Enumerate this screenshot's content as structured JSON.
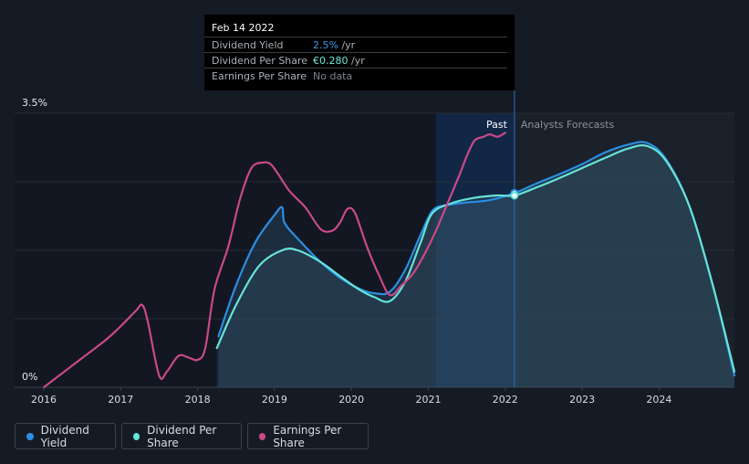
{
  "tooltip": {
    "date": "Feb 14 2022",
    "rows": [
      {
        "name": "Dividend Yield",
        "value": "2.5%",
        "unit": " /yr",
        "color": "#3b9ae1"
      },
      {
        "name": "Dividend Per Share",
        "value": "€0.280",
        "unit": " /yr",
        "color": "#6fe8d9"
      },
      {
        "name": "Earnings Per Share",
        "value": "No data",
        "unit": "",
        "color": "#7d848c"
      }
    ]
  },
  "legend": [
    {
      "label": "Dividend Yield",
      "color": "#2b8fe3"
    },
    {
      "label": "Dividend Per Share",
      "color": "#66e4d8"
    },
    {
      "label": "Earnings Per Share",
      "color": "#c9498a"
    }
  ],
  "regions": {
    "past": "Past",
    "forecast": "Analysts Forecasts"
  },
  "chart_data": {
    "type": "line",
    "x_ticks": [
      "2016",
      "2017",
      "2018",
      "2019",
      "2020",
      "2021",
      "2022",
      "2023",
      "2024"
    ],
    "y_tick_labels": [
      "3.5%",
      "0%"
    ],
    "ylim": [
      0,
      3.5
    ],
    "xlim": [
      2016,
      2024.98
    ],
    "divider_x": 2022.12,
    "highlight_band": [
      2021.1,
      2022.12
    ],
    "marker_x": 2022.12,
    "grid": true,
    "colors": {
      "yield": "#2b8fe3",
      "dps": "#66e4d8",
      "eps": "#c9498a"
    },
    "series": [
      {
        "name": "Dividend Yield",
        "key": "yield",
        "points": [
          [
            2018.27,
            0.65
          ],
          [
            2018.5,
            1.3
          ],
          [
            2018.75,
            1.85
          ],
          [
            2019.0,
            2.2
          ],
          [
            2019.1,
            2.3
          ],
          [
            2019.13,
            2.1
          ],
          [
            2019.3,
            1.9
          ],
          [
            2019.6,
            1.6
          ],
          [
            2019.85,
            1.4
          ],
          [
            2020.1,
            1.26
          ],
          [
            2020.3,
            1.2
          ],
          [
            2020.5,
            1.22
          ],
          [
            2020.7,
            1.5
          ],
          [
            2020.9,
            1.95
          ],
          [
            2021.05,
            2.25
          ],
          [
            2021.2,
            2.32
          ],
          [
            2021.5,
            2.36
          ],
          [
            2021.8,
            2.39
          ],
          [
            2022.12,
            2.48
          ],
          [
            2022.4,
            2.6
          ],
          [
            2022.7,
            2.72
          ],
          [
            2023.0,
            2.85
          ],
          [
            2023.3,
            3.0
          ],
          [
            2023.6,
            3.1
          ],
          [
            2023.85,
            3.12
          ],
          [
            2024.1,
            2.9
          ],
          [
            2024.4,
            2.3
          ],
          [
            2024.7,
            1.3
          ],
          [
            2024.98,
            0.15
          ]
        ]
      },
      {
        "name": "Dividend Per Share",
        "key": "dps",
        "points": [
          [
            2018.25,
            0.5
          ],
          [
            2018.5,
            1.05
          ],
          [
            2018.8,
            1.55
          ],
          [
            2019.1,
            1.75
          ],
          [
            2019.3,
            1.75
          ],
          [
            2019.6,
            1.6
          ],
          [
            2019.85,
            1.42
          ],
          [
            2020.1,
            1.25
          ],
          [
            2020.3,
            1.15
          ],
          [
            2020.5,
            1.1
          ],
          [
            2020.7,
            1.35
          ],
          [
            2020.9,
            1.85
          ],
          [
            2021.05,
            2.22
          ],
          [
            2021.3,
            2.35
          ],
          [
            2021.6,
            2.42
          ],
          [
            2021.9,
            2.45
          ],
          [
            2022.12,
            2.45
          ],
          [
            2022.4,
            2.55
          ],
          [
            2022.7,
            2.67
          ],
          [
            2023.0,
            2.8
          ],
          [
            2023.3,
            2.93
          ],
          [
            2023.6,
            3.05
          ],
          [
            2023.85,
            3.08
          ],
          [
            2024.1,
            2.88
          ],
          [
            2024.4,
            2.3
          ],
          [
            2024.7,
            1.3
          ],
          [
            2024.98,
            0.2
          ]
        ]
      },
      {
        "name": "Earnings Per Share",
        "key": "eps",
        "points": [
          [
            2016.0,
            0.0
          ],
          [
            2016.4,
            0.3
          ],
          [
            2016.8,
            0.6
          ],
          [
            2017.0,
            0.78
          ],
          [
            2017.2,
            0.98
          ],
          [
            2017.28,
            1.05
          ],
          [
            2017.35,
            0.85
          ],
          [
            2017.5,
            0.15
          ],
          [
            2017.6,
            0.2
          ],
          [
            2017.75,
            0.4
          ],
          [
            2017.88,
            0.38
          ],
          [
            2018.0,
            0.35
          ],
          [
            2018.1,
            0.5
          ],
          [
            2018.22,
            1.25
          ],
          [
            2018.4,
            1.8
          ],
          [
            2018.55,
            2.4
          ],
          [
            2018.7,
            2.8
          ],
          [
            2018.85,
            2.87
          ],
          [
            2018.95,
            2.85
          ],
          [
            2019.05,
            2.72
          ],
          [
            2019.2,
            2.5
          ],
          [
            2019.4,
            2.3
          ],
          [
            2019.6,
            2.02
          ],
          [
            2019.75,
            2.0
          ],
          [
            2019.85,
            2.1
          ],
          [
            2019.95,
            2.28
          ],
          [
            2020.05,
            2.22
          ],
          [
            2020.2,
            1.8
          ],
          [
            2020.35,
            1.45
          ],
          [
            2020.5,
            1.18
          ],
          [
            2020.65,
            1.3
          ],
          [
            2020.8,
            1.45
          ],
          [
            2020.95,
            1.7
          ],
          [
            2021.1,
            2.0
          ],
          [
            2021.25,
            2.35
          ],
          [
            2021.4,
            2.7
          ],
          [
            2021.5,
            2.95
          ],
          [
            2021.6,
            3.15
          ],
          [
            2021.72,
            3.2
          ],
          [
            2021.8,
            3.23
          ],
          [
            2021.9,
            3.2
          ],
          [
            2022.0,
            3.25
          ]
        ]
      }
    ]
  }
}
